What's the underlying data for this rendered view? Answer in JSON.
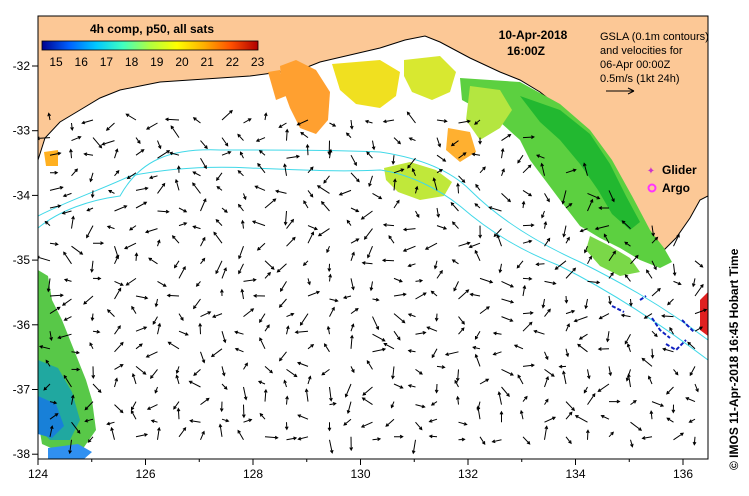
{
  "colorbar": {
    "title": "4h comp, p50, all sats",
    "ticks": [
      "15",
      "16",
      "17",
      "18",
      "19",
      "20",
      "21",
      "22",
      "23"
    ],
    "stops": [
      "#00008f",
      "#0060ff",
      "#00c8ff",
      "#40ffc0",
      "#b0ff40",
      "#ffff00",
      "#ffb000",
      "#ff5000",
      "#b00000"
    ]
  },
  "datetime": {
    "date": "10-Apr-2018",
    "time": "16:00Z"
  },
  "gsla": {
    "line1": "GSLA (0.1m contours)",
    "line2": "and velocities for",
    "line3": "06-Apr 00:00Z",
    "line4": "0.5m/s (1kt 24h)"
  },
  "legend": {
    "glider": "Glider",
    "argo": "Argo"
  },
  "credit": "© IMOS 11-Apr-2018 16:45 Hobart Time",
  "axes": {
    "x_ticks": [
      "124",
      "126",
      "128",
      "130",
      "132",
      "134",
      "136"
    ],
    "y_ticks": [
      "-32",
      "-33",
      "-34",
      "-35",
      "-36",
      "-37",
      "-38"
    ]
  },
  "colors": {
    "land": "#fcc896",
    "contour": "#40d8e8",
    "glider": "#cc33cc",
    "argo": "#ff33ff"
  }
}
